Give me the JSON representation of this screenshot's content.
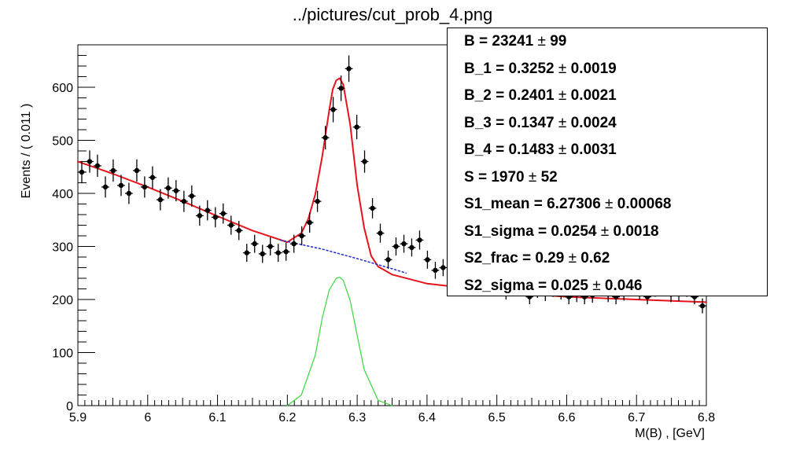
{
  "title": "../pictures/cut_prob_4.png",
  "chart_data": {
    "type": "scatter",
    "title": "../pictures/cut_prob_4.png",
    "xlabel": "M(B) , [GeV]",
    "ylabel": "Events / ( 0.011 )",
    "xlim": [
      5.9,
      6.8
    ],
    "ylim": [
      0,
      680
    ],
    "x_ticks": [
      "5.9",
      "6",
      "6.1",
      "6.2",
      "6.3",
      "6.4",
      "6.5",
      "6.6",
      "6.7",
      "6.8"
    ],
    "y_ticks": [
      "0",
      "100",
      "200",
      "300",
      "400",
      "500",
      "600"
    ],
    "grid": false,
    "series": [
      {
        "kind": "points_with_errors",
        "color": "#000000",
        "x": [
          5.9056,
          5.9169,
          5.9281,
          5.9394,
          5.9506,
          5.9619,
          5.9731,
          5.9844,
          5.9956,
          6.0069,
          6.0181,
          6.0294,
          6.0406,
          6.0519,
          6.0631,
          6.0744,
          6.0856,
          6.0969,
          6.1081,
          6.1194,
          6.1306,
          6.1419,
          6.1531,
          6.1644,
          6.1756,
          6.1869,
          6.1981,
          6.2094,
          6.2206,
          6.2319,
          6.2431,
          6.2544,
          6.2656,
          6.2769,
          6.2881,
          6.2994,
          6.3106,
          6.3219,
          6.3331,
          6.3444,
          6.3556,
          6.3669,
          6.3781,
          6.3894,
          6.4006,
          6.4119,
          6.4231,
          6.4344,
          6.4456,
          6.4569,
          6.4681,
          6.4794,
          6.4906,
          6.5019,
          6.5131,
          6.5244,
          6.5356,
          6.5469,
          6.5581,
          6.5694,
          6.5806,
          6.5919,
          6.6031,
          6.6144,
          6.6256,
          6.6369,
          6.6481,
          6.6594,
          6.6706,
          6.6819,
          6.6931,
          6.7044,
          6.7156,
          6.7269,
          6.7381,
          6.7494,
          6.7606,
          6.7719,
          6.7831,
          6.7944
        ],
        "y": [
          440,
          460,
          452,
          412,
          443,
          415,
          400,
          443,
          412,
          430,
          388,
          410,
          405,
          385,
          395,
          358,
          368,
          355,
          362,
          340,
          330,
          288,
          305,
          286,
          300,
          288,
          290,
          305,
          320,
          345,
          385,
          505,
          558,
          598,
          635,
          525,
          460,
          372,
          325,
          275,
          300,
          305,
          298,
          312,
          275,
          255,
          260,
          230,
          225,
          233,
          230,
          225,
          228,
          240,
          215,
          223,
          222,
          205,
          218,
          212,
          220,
          215,
          205,
          210,
          205,
          208,
          225,
          210,
          205,
          213,
          228,
          215,
          205,
          220,
          230,
          210,
          212,
          220,
          205,
          188
        ],
        "errors": [
          21,
          21,
          21,
          20,
          21,
          20,
          20,
          21,
          20,
          21,
          20,
          20,
          20,
          20,
          20,
          19,
          19,
          19,
          19,
          18,
          18,
          17,
          17,
          17,
          17,
          17,
          17,
          17,
          18,
          19,
          20,
          22,
          24,
          24,
          25,
          23,
          21,
          19,
          18,
          17,
          17,
          17,
          17,
          18,
          17,
          16,
          16,
          15,
          15,
          15,
          15,
          15,
          15,
          15,
          15,
          15,
          15,
          14,
          15,
          15,
          15,
          15,
          14,
          15,
          14,
          14,
          15,
          15,
          14,
          15,
          15,
          15,
          14,
          15,
          15,
          15,
          15,
          15,
          14,
          14
        ]
      },
      {
        "name": "total fit",
        "kind": "line",
        "color": "#e8141b",
        "style": "solid",
        "x": [
          5.9,
          5.95,
          6.0,
          6.05,
          6.1,
          6.15,
          6.2,
          6.22,
          6.23,
          6.24,
          6.25,
          6.26,
          6.265,
          6.27,
          6.275,
          6.28,
          6.29,
          6.3,
          6.31,
          6.32,
          6.33,
          6.35,
          6.4,
          6.5,
          6.6,
          6.7,
          6.8
        ],
        "y": [
          460,
          437,
          412,
          385,
          357,
          330,
          308,
          325,
          352,
          398,
          470,
          557,
          596,
          613,
          617,
          605,
          530,
          415,
          335,
          282,
          262,
          247,
          230,
          215,
          205,
          200,
          195
        ]
      },
      {
        "name": "background",
        "kind": "line",
        "color": "#1d29d6",
        "style": "dotted",
        "x": [
          6.19,
          6.25,
          6.3,
          6.35,
          6.37
        ],
        "y": [
          312,
          295,
          277,
          258,
          250
        ]
      },
      {
        "name": "signal",
        "kind": "line",
        "color": "#39d63e",
        "style": "solid",
        "x": [
          6.2,
          6.22,
          6.24,
          6.25,
          6.26,
          6.27,
          6.275,
          6.28,
          6.29,
          6.3,
          6.31,
          6.33,
          6.35
        ],
        "y": [
          0,
          20,
          95,
          165,
          218,
          240,
          242,
          236,
          198,
          132,
          68,
          10,
          0
        ]
      }
    ]
  },
  "stats_box": {
    "rows": [
      {
        "name": "B =  23241",
        "pm": "±",
        "err": "99"
      },
      {
        "name": "B_1 =  0.3252",
        "pm": "±",
        "err": "0.0019"
      },
      {
        "name": "B_2 =  0.2401",
        "pm": "±",
        "err": "0.0021"
      },
      {
        "name": "B_3 =  0.1347",
        "pm": "±",
        "err": "0.0024"
      },
      {
        "name": "B_4 =  0.1483",
        "pm": "±",
        "err": "0.0031"
      },
      {
        "name": "S =  1970",
        "pm": "±",
        "err": "52"
      },
      {
        "name": "S1_mean =  6.27306",
        "pm": "±",
        "err": "0.00068"
      },
      {
        "name": "S1_sigma =  0.0254",
        "pm": "±",
        "err": "0.0018"
      },
      {
        "name": "S2_frac =  0.29",
        "pm": "±",
        "err": "0.62"
      },
      {
        "name": "S2_sigma =  0.025",
        "pm": "±",
        "err": "0.046"
      }
    ]
  }
}
